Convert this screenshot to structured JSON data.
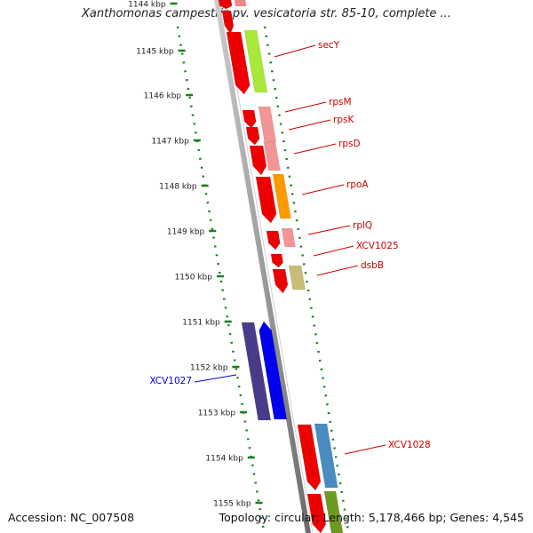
{
  "title": "Xanthomonas campestris pv. vesicatoria str. 85-10, complete ...",
  "accession": "Accession: NC_007508",
  "topology_info": "Topology: circular; Length: 5,178,466 bp; Genes: 4,545",
  "colors": {
    "backbone": "#8a8a8a",
    "axis_ticks": "#1a7f1a",
    "label_red": "#cc0000",
    "label_blue": "#0000cc"
  },
  "ruler": {
    "labels": [
      "1144 kbp",
      "1145 kbp",
      "1146 kbp",
      "1147 kbp",
      "1148 kbp",
      "1149 kbp",
      "1150 kbp",
      "1151 kbp",
      "1152 kbp",
      "1153 kbp",
      "1154 kbp",
      "1155 kbp"
    ]
  },
  "gene_labels": [
    {
      "text": "secY",
      "color": "red"
    },
    {
      "text": "rpsM",
      "color": "red"
    },
    {
      "text": "rpsK",
      "color": "red"
    },
    {
      "text": "rpsD",
      "color": "red"
    },
    {
      "text": "rpoA",
      "color": "red"
    },
    {
      "text": "rplQ",
      "color": "red"
    },
    {
      "text": "XCV1025",
      "color": "red"
    },
    {
      "text": "dsbB",
      "color": "red"
    },
    {
      "text": "XCV1027",
      "color": "blue"
    },
    {
      "text": "XCV1028",
      "color": "red"
    }
  ]
}
